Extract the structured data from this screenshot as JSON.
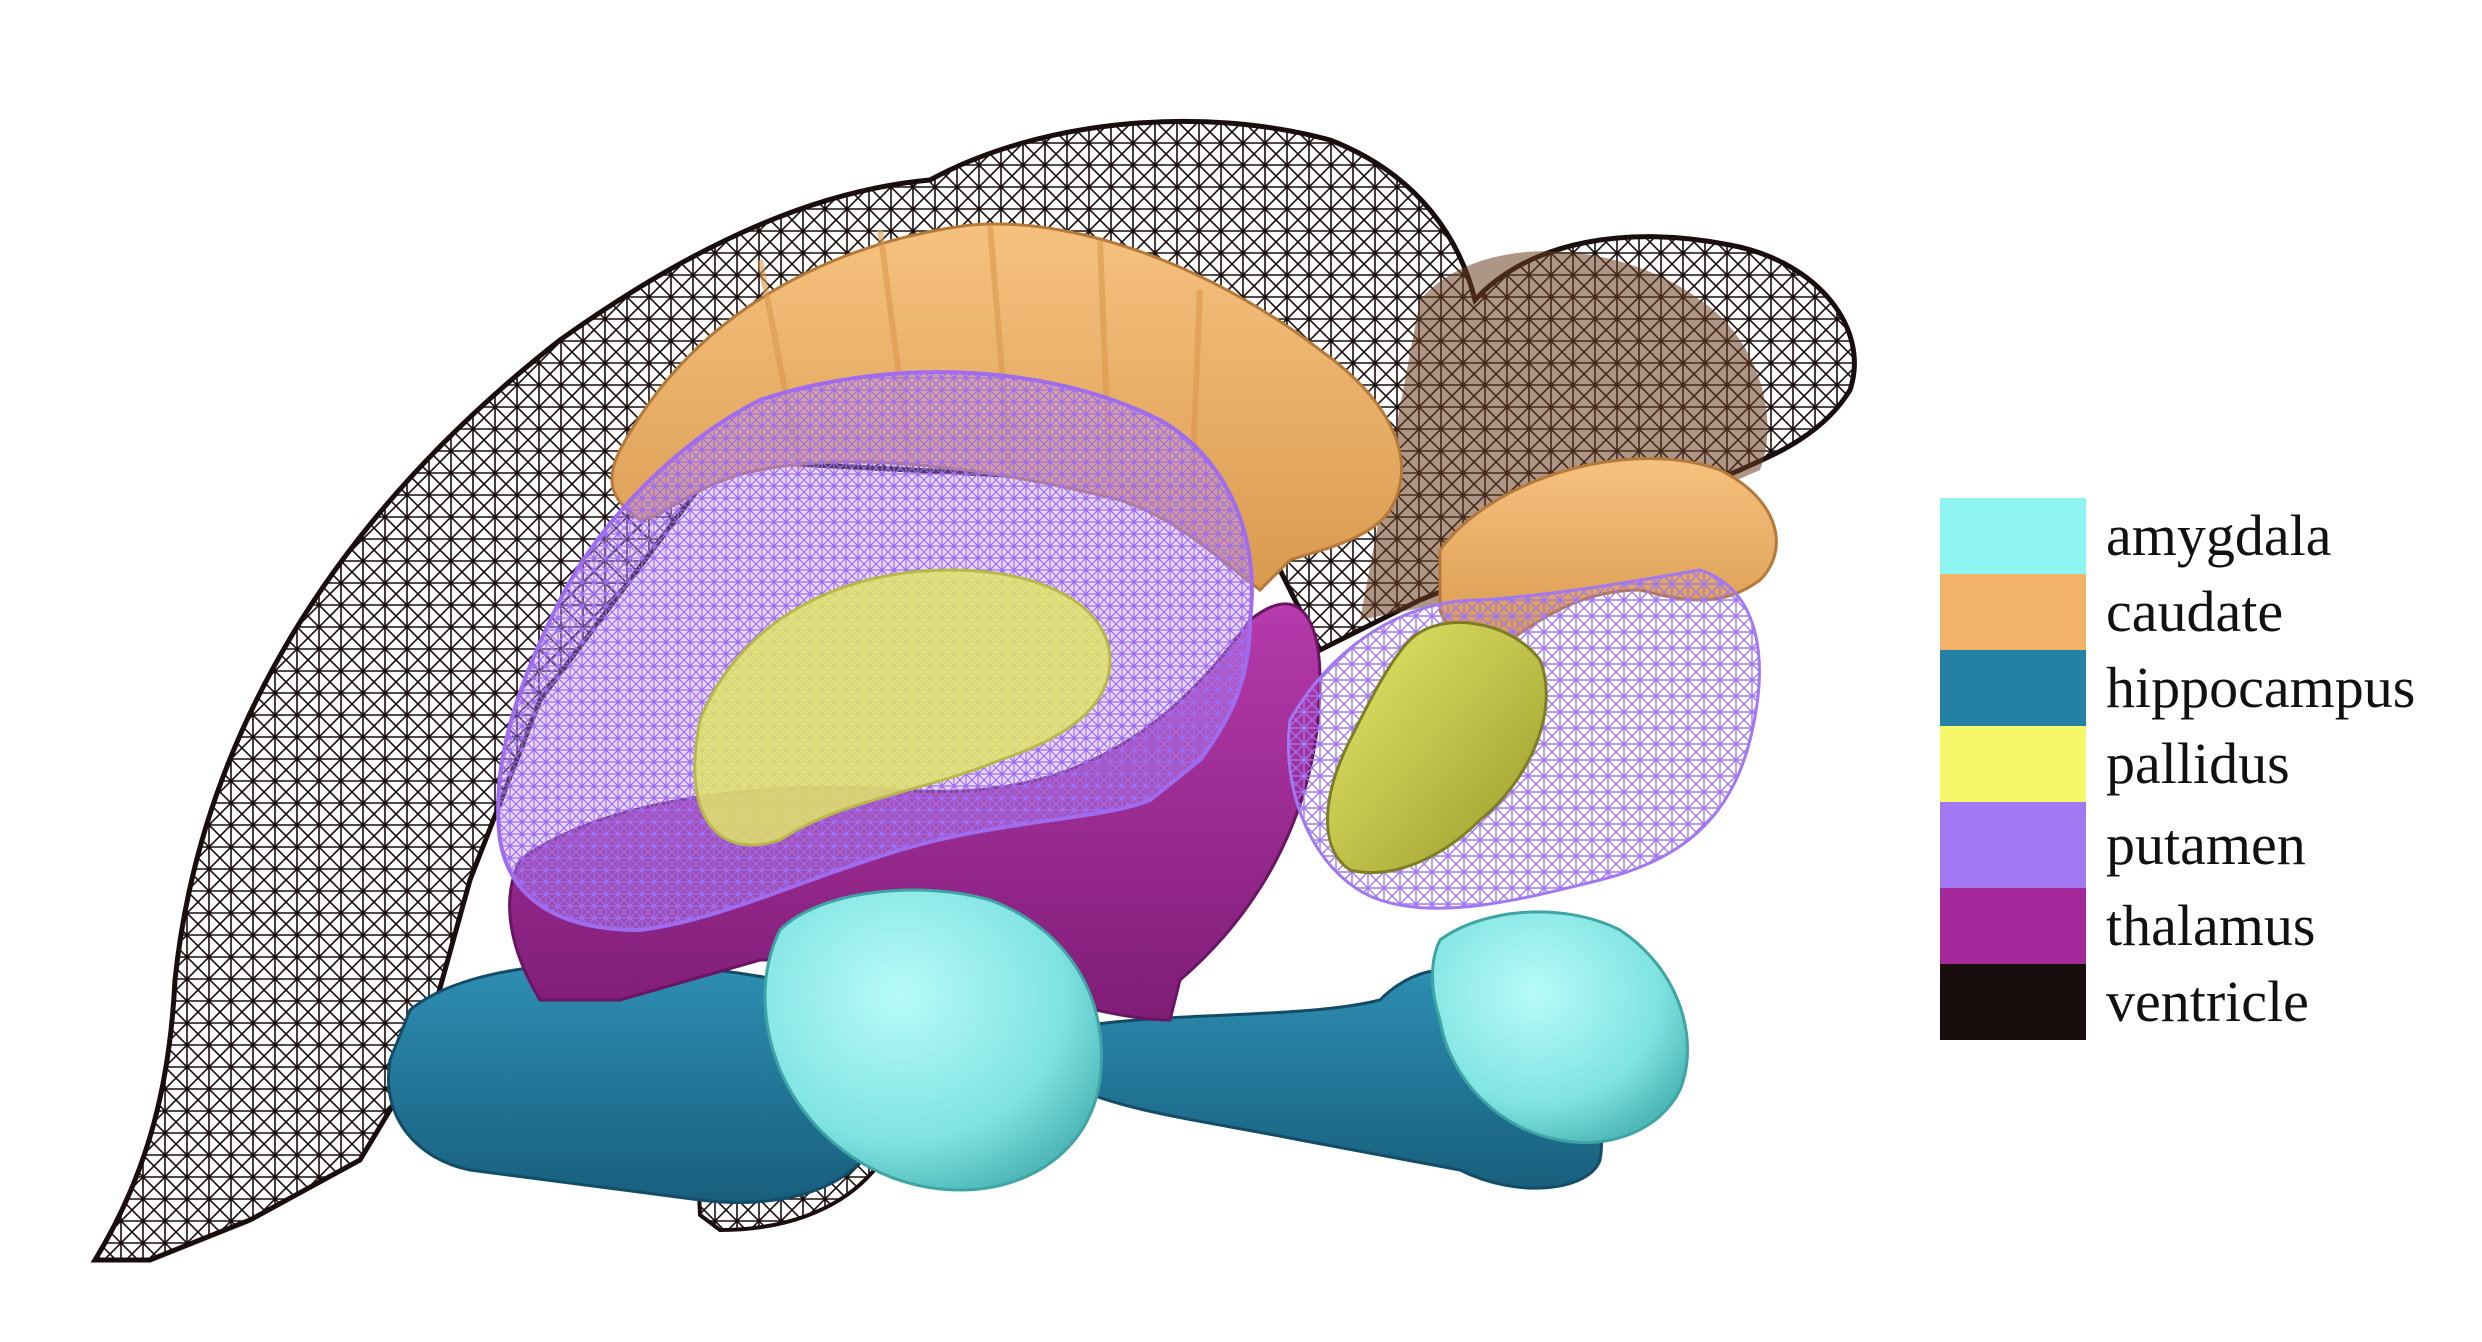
{
  "figure": {
    "structures": [
      {
        "id": "amygdala",
        "label": "amygdala",
        "color": "#8ff5f3"
      },
      {
        "id": "caudate",
        "label": "caudate",
        "color": "#f2b26a"
      },
      {
        "id": "hippocampus",
        "label": "hippocampus",
        "color": "#2480a5"
      },
      {
        "id": "pallidus",
        "label": "pallidus",
        "color": "#f7f76a"
      },
      {
        "id": "putamen",
        "label": "putamen",
        "color": "#a277f2"
      },
      {
        "id": "thalamus",
        "label": "thalamus",
        "color": "#a3299a"
      },
      {
        "id": "ventricle",
        "label": "ventricle",
        "color": "#1a0d0d"
      }
    ]
  }
}
